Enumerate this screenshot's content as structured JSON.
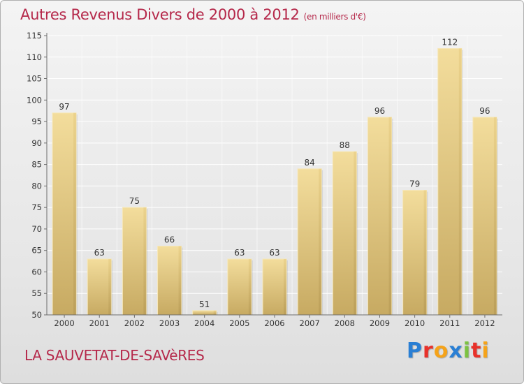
{
  "page": {
    "place_name": "LA SAUVETAT-DE-SAVèRES",
    "brand": "Proxiti",
    "brand_colors": [
      "#2a7fd4",
      "#e8312a",
      "#f5a31a",
      "#2a7fd4",
      "#7cc242",
      "#e8312a",
      "#f5a31a"
    ]
  },
  "chart_data": {
    "type": "bar",
    "title": "Autres Revenus Divers de 2000 à 2012",
    "subtitle": "(en milliers d'€)",
    "xlabel": "",
    "ylabel": "",
    "categories": [
      "2000",
      "2001",
      "2002",
      "2003",
      "2004",
      "2005",
      "2006",
      "2007",
      "2008",
      "2009",
      "2010",
      "2011",
      "2012"
    ],
    "values": [
      97,
      63,
      75,
      66,
      51,
      63,
      63,
      84,
      88,
      96,
      79,
      112,
      96
    ],
    "data_labels": [
      "97",
      "63",
      "75",
      "66",
      "51",
      "63",
      "63",
      "84",
      "88",
      "96",
      "79",
      "112",
      "96"
    ],
    "ylim": [
      50,
      115
    ],
    "yticks": [
      50,
      55,
      60,
      65,
      70,
      75,
      80,
      85,
      90,
      95,
      100,
      105,
      110,
      115
    ],
    "grid": true,
    "bar_color": "#e8cc84",
    "axis_color": "#6d6d6d"
  }
}
